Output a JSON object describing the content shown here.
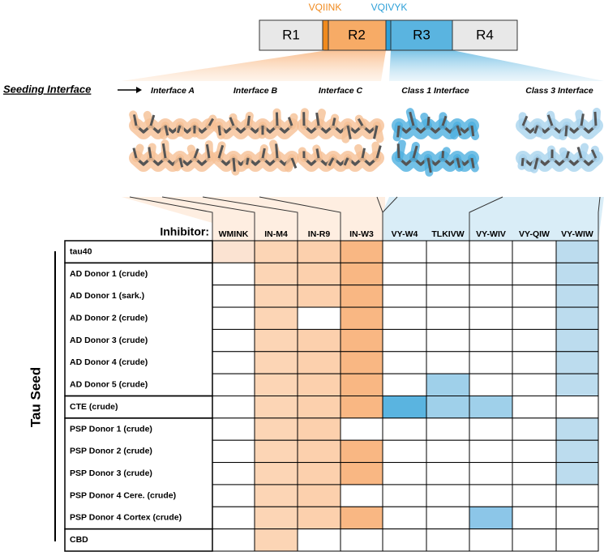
{
  "domains": [
    "R1",
    "R2",
    "R3",
    "R4"
  ],
  "motifs": [
    "VQIINK",
    "VQIVYK"
  ],
  "seeding_label": "Seeding Interface",
  "interfaces": [
    "Interface A",
    "Interface B",
    "Interface C",
    "Class 1 Interface",
    "Class 3 Interface"
  ],
  "table": {
    "inhibitor_label": "Inhibitor:",
    "group_label": "Tau Seed",
    "columns": [
      "WMINK",
      "IN-M4",
      "IN-R9",
      "IN-W3",
      "VY-W4",
      "TLKIVW",
      "VY-WIV",
      "VY-QIW",
      "VY-WIW"
    ],
    "rows": [
      "tau40",
      "AD Donor 1 (crude)",
      "AD Donor 1 (sark.)",
      "AD Donor 2 (crude)",
      "AD Donor 3 (crude)",
      "AD Donor 4 (crude)",
      "AD Donor 5 (crude)",
      "CTE (crude)",
      "PSP Donor 1 (crude)",
      "PSP Donor 2 (crude)",
      "PSP Donor 3 (crude)",
      "PSP Donor 4 Cere. (crude)",
      "PSP Donor 4 Cortex (crude)",
      "CBD"
    ],
    "cells": [
      [
        "#fbe3d2",
        "#fcd5b5",
        "#fcd0ad",
        "#f9b783",
        null,
        null,
        null,
        null,
        "#bcdcee"
      ],
      [
        null,
        "#fcd5b5",
        "#fcd0ad",
        "#f9b783",
        null,
        null,
        null,
        null,
        "#bcdcee"
      ],
      [
        null,
        "#fcd5b5",
        "#fcd0ad",
        "#f9b783",
        null,
        null,
        null,
        null,
        "#bcdcee"
      ],
      [
        null,
        "#fcd5b5",
        null,
        "#f9b783",
        null,
        null,
        null,
        null,
        "#bcdcee"
      ],
      [
        null,
        "#fcd5b5",
        "#fcd0ad",
        "#f9b783",
        null,
        null,
        null,
        null,
        "#bcdcee"
      ],
      [
        null,
        "#fcd5b5",
        "#fcd0ad",
        "#f9b783",
        null,
        null,
        null,
        null,
        "#bcdcee"
      ],
      [
        null,
        "#fcd5b5",
        "#fcd0ad",
        "#f9b783",
        null,
        "#9fd0ea",
        null,
        null,
        "#bcdcee"
      ],
      [
        null,
        "#fcd5b5",
        "#fcd0ad",
        "#f9b783",
        "#5ab4e0",
        "#9fd0ea",
        "#9fd0ea",
        null,
        null
      ],
      [
        null,
        "#fcd5b5",
        "#fcd0ad",
        null,
        null,
        null,
        null,
        null,
        "#bcdcee"
      ],
      [
        null,
        "#fcd5b5",
        "#fcd0ad",
        "#f9b783",
        null,
        null,
        null,
        null,
        "#bcdcee"
      ],
      [
        null,
        "#fcd5b5",
        "#fcd0ad",
        "#f9b783",
        null,
        null,
        null,
        null,
        "#bcdcee"
      ],
      [
        null,
        "#fcd5b5",
        "#fcd0ad",
        null,
        null,
        null,
        null,
        null,
        null
      ],
      [
        null,
        "#fcd5b5",
        "#fcd0ad",
        "#f9b783",
        null,
        null,
        "#8cc6e8",
        null,
        null
      ],
      [
        null,
        "#fcd5b5",
        null,
        null,
        null,
        null,
        null,
        null,
        null
      ]
    ]
  }
}
